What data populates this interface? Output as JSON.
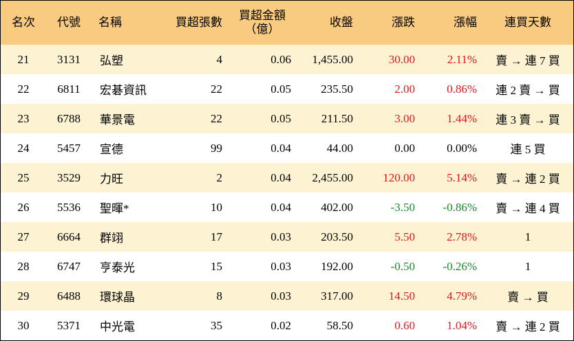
{
  "table": {
    "header": [
      "名次",
      "代號",
      "名稱",
      "買超張數",
      [
        "買超金額",
        "（億）"
      ],
      "收盤",
      "漲跌",
      "漲幅",
      "連買天數"
    ],
    "rows": [
      [
        "21",
        "3131",
        "弘塑",
        "4",
        "0.06",
        "1,455.00",
        "30.00",
        "2.11%",
        "賣 → 連 7 買"
      ],
      [
        "22",
        "6811",
        "宏碁資訊",
        "22",
        "0.05",
        "235.50",
        "2.00",
        "0.86%",
        "連 2 賣 → 買"
      ],
      [
        "23",
        "6788",
        "華景電",
        "22",
        "0.05",
        "211.50",
        "3.00",
        "1.44%",
        "連 3 賣 → 買"
      ],
      [
        "24",
        "5457",
        "宣德",
        "99",
        "0.04",
        "44.00",
        "0.00",
        "0.00%",
        "連 5 買"
      ],
      [
        "25",
        "3529",
        "力旺",
        "2",
        "0.04",
        "2,455.00",
        "120.00",
        "5.14%",
        "賣 → 連 2 買"
      ],
      [
        "26",
        "5536",
        "聖暉*",
        "10",
        "0.04",
        "402.00",
        "-3.50",
        "-0.86%",
        "賣 → 連 4 買"
      ],
      [
        "27",
        "6664",
        "群翊",
        "17",
        "0.03",
        "203.50",
        "5.50",
        "2.78%",
        "1"
      ],
      [
        "28",
        "6747",
        "亨泰光",
        "15",
        "0.03",
        "192.00",
        "-0.50",
        "-0.26%",
        "1"
      ],
      [
        "29",
        "6488",
        "環球晶",
        "8",
        "0.03",
        "317.00",
        "14.50",
        "4.79%",
        "賣 → 買"
      ],
      [
        "30",
        "5371",
        "中光電",
        "35",
        "0.02",
        "58.50",
        "0.60",
        "1.04%",
        "賣 → 連 2 買"
      ]
    ],
    "change_colors": [
      "#e8151b",
      "#e8151b",
      "#e8151b",
      "#000000",
      "#e8151b",
      "#1a8a2a",
      "#e8151b",
      "#1a8a2a",
      "#e8151b",
      "#e8151b"
    ],
    "header_color": "#f9cb80",
    "stripe_color": "#fdf3d3"
  }
}
